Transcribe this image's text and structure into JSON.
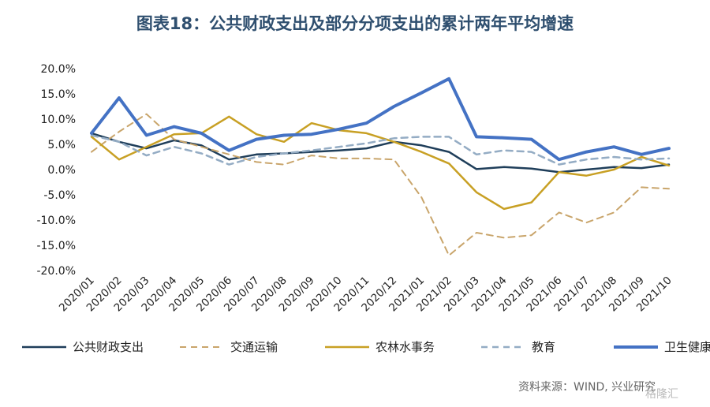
{
  "title": "图表18：公共财政支出及部分分项支出的累计两年平均增速",
  "source": "资料来源：WIND, 兴业研究",
  "watermark": "格隆汇",
  "chart_data": {
    "type": "line",
    "ylim": [
      -20,
      20
    ],
    "yticks": [
      20,
      15,
      10,
      5,
      0,
      -5,
      -10,
      -15,
      -20
    ],
    "ytick_labels": [
      "20.0%",
      "15.0%",
      "10.0%",
      "5.0%",
      "0.0%",
      "-5.0%",
      "-10.0%",
      "-15.0%",
      "-20.0%"
    ],
    "categories": [
      "2020/01",
      "2020/02",
      "2020/03",
      "2020/04",
      "2020/05",
      "2020/06",
      "2020/07",
      "2020/08",
      "2020/09",
      "2020/10",
      "2020/11",
      "2020/12",
      "2021/01",
      "2021/02",
      "2021/03",
      "2021/04",
      "2021/05",
      "2021/06",
      "2021/07",
      "2021/08",
      "2021/09",
      "2021/10"
    ],
    "legend_position": "bottom",
    "grid": false,
    "series": [
      {
        "name": "公共财政支出",
        "color": "#1f3e5a",
        "dash": "solid",
        "width": 2.5,
        "values": [
          7.2,
          5.5,
          4.2,
          5.8,
          4.8,
          2.0,
          3.0,
          3.2,
          3.5,
          3.8,
          4.2,
          5.5,
          4.8,
          3.5,
          0.1,
          0.5,
          0.2,
          -0.5,
          0.0,
          0.5,
          0.3,
          1.0
        ]
      },
      {
        "name": "交通运输",
        "color": "#c9a56b",
        "dash": "dashed",
        "width": 2,
        "values": [
          3.5,
          7.5,
          11.0,
          6.0,
          4.5,
          3.0,
          1.5,
          1.0,
          2.8,
          2.2,
          2.2,
          2.0,
          -5.5,
          -17.0,
          -12.5,
          -13.5,
          -13.0,
          -8.5,
          -10.5,
          -8.5,
          -3.5,
          -3.8
        ]
      },
      {
        "name": "农林水事务",
        "color": "#c8a024",
        "dash": "solid",
        "width": 2.5,
        "values": [
          6.5,
          2.0,
          4.5,
          7.0,
          7.2,
          10.5,
          7.0,
          5.5,
          9.2,
          7.8,
          7.2,
          5.5,
          3.5,
          1.2,
          -4.5,
          -7.8,
          -6.5,
          -0.5,
          -1.2,
          0.0,
          2.5,
          0.8
        ]
      },
      {
        "name": "教育",
        "color": "#94acc4",
        "dash": "dashed",
        "width": 2.5,
        "values": [
          6.8,
          5.5,
          2.8,
          4.5,
          3.2,
          1.0,
          2.5,
          3.2,
          3.8,
          4.5,
          5.2,
          6.2,
          6.5,
          6.5,
          3.0,
          3.8,
          3.5,
          1.0,
          2.0,
          2.5,
          2.0,
          2.2
        ]
      },
      {
        "name": "卫生健康",
        "color": "#4472c4",
        "dash": "solid",
        "width": 4,
        "values": [
          7.2,
          14.2,
          6.8,
          8.5,
          7.2,
          3.8,
          6.0,
          6.8,
          7.0,
          8.0,
          9.2,
          12.5,
          15.2,
          18.0,
          6.5,
          6.3,
          6.0,
          2.0,
          3.5,
          4.5,
          3.0,
          4.2
        ]
      }
    ]
  }
}
